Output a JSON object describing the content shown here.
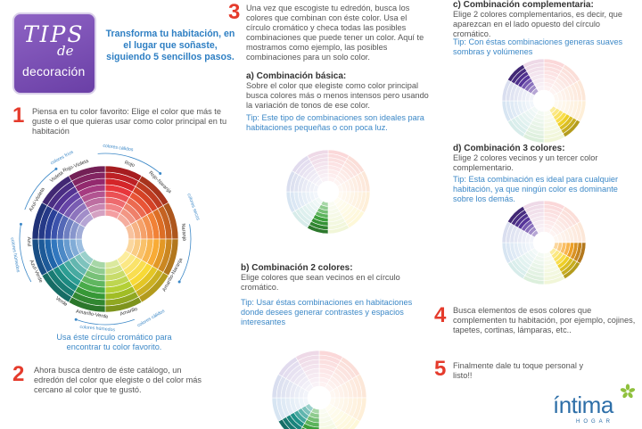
{
  "header": {
    "logo_line1": "TIPS",
    "logo_line2": "de",
    "logo_line3": "decoración",
    "headline": "Transforma tu habitación, en el lugar que soñaste, siguiendo 5 sencillos pasos."
  },
  "step1": {
    "number": "1",
    "text": "Piensa en tu color favorito: Elige el color que más te guste o el que quieras usar como color principal en tu habitación",
    "wheel_caption": "Usa éste círculo cromático para encontrar tu color favorito."
  },
  "wheel_labels": {
    "rojo": "Rojo",
    "rojo_naranja": "Rojo-Naranja",
    "naranja": "Naranja",
    "amarillo_naranja": "Amarillo-Naranja",
    "amarillo": "Amarillo",
    "amarillo_verde": "Amarillo-Verde",
    "verde": "Verde",
    "azul_verde": "Azul-Verde",
    "azul": "Azul",
    "azul_violeta": "Azul-Violeta",
    "violeta": "Violeta",
    "rojo_violeta": "Rojo-Violeta",
    "colores_calidos": "colores cálidos",
    "colores_frios": "colores fríos",
    "colores_secos": "colores secos",
    "colores_humedos": "colores húmedos"
  },
  "step2": {
    "number": "2",
    "text": "Ahora busca dentro de éste catálogo, un edredón del color que elegiste o del color más cercano al color que te gustó."
  },
  "step3": {
    "number": "3",
    "text": "Una vez que escogiste tu edredón, busca los colores que combinan con éste color. Usa el círculo cromático y checa todas las posibles combinaciones que puede tener un color. Aquí te mostramos como ejemplo, las posibles combinaciones para un solo color."
  },
  "combo_a": {
    "title": "a) Combinación básica:",
    "text": "Sobre el color que elegiste como color principal busca colores más o menos intensos pero usando la variación de tonos de ese color.",
    "tip": "Tip: Este tipo de combinaciones son ideales para habitaciones pequeñas o con poca luz."
  },
  "combo_b": {
    "title": "b) Combinación 2 colores:",
    "text": "Elige colores que sean vecinos en el círculo cromático.",
    "tip": "Tip: Usar éstas combinaciones en habitaciones donde desees generar contrastes y espacios interesantes"
  },
  "combo_c": {
    "title": "c) Combinación complementaria:",
    "text": "Elige 2 colores complementarios, es decir, que aparezcan en el lado opuesto del círculo cromático.",
    "tip": "Tip: Con éstas combinaciones generas suaves sombras y volúmenes"
  },
  "combo_d": {
    "title": "d) Combinación 3 colores:",
    "text": "Elige 2 colores vecinos y un tercer color complementario.",
    "tip": "Tip: Esta combinación es ideal para cualquier habitación, ya que ningún color es dominante sobre los demás."
  },
  "step4": {
    "number": "4",
    "text": "Busca elementos de esos colores que complementen tu habitación, por ejemplo, cojines, tapetes, cortinas, lámparas, etc.."
  },
  "step5": {
    "number": "5",
    "text": "Finalmente dale tu toque personal y listo!!"
  },
  "brand": {
    "name": "íntima",
    "sub": "HOGAR"
  },
  "colors": {
    "step_red": "#e53b2c",
    "tip_blue": "#3c88c7",
    "logo_purple": "#6a3fa6"
  }
}
